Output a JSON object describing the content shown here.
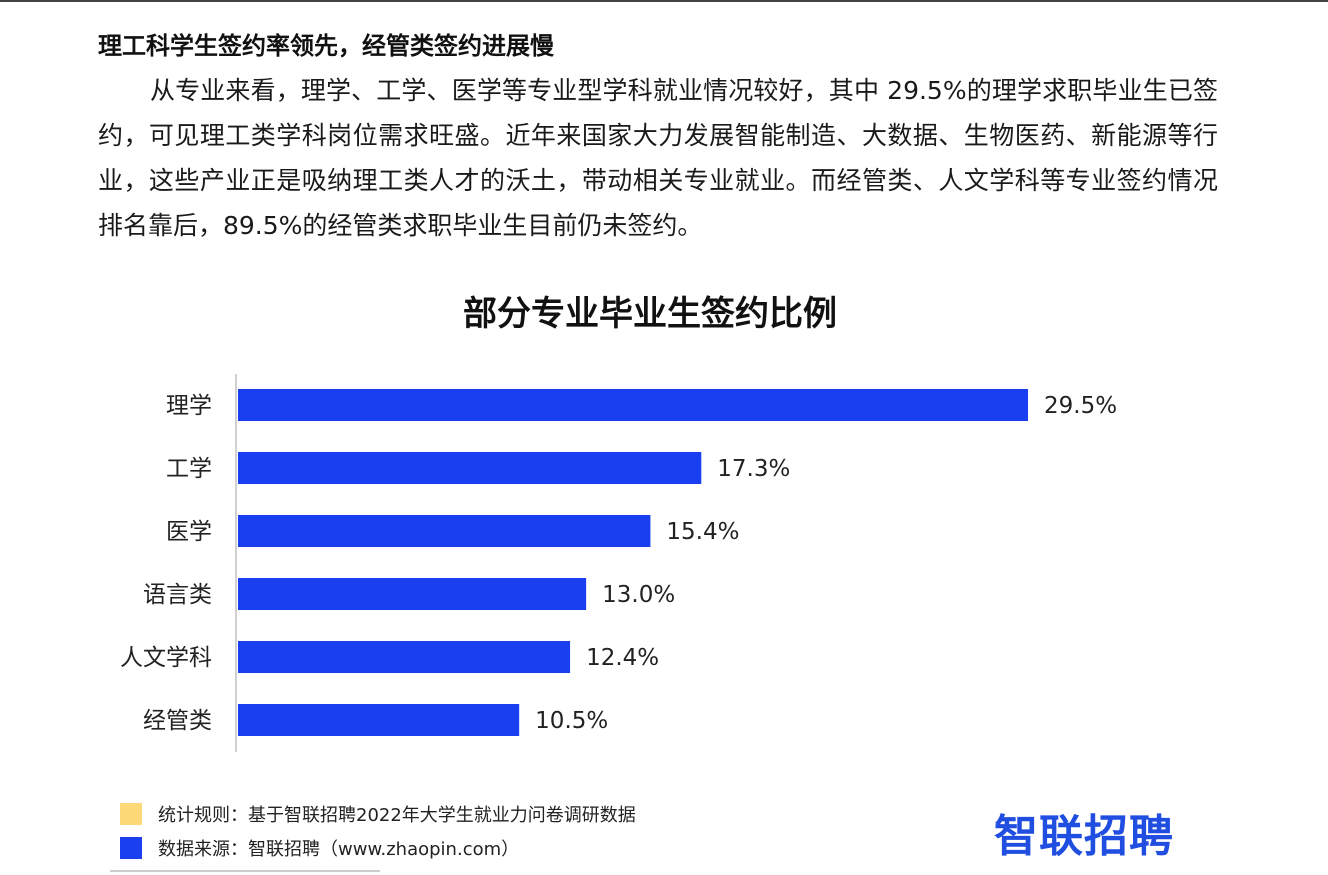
{
  "article": {
    "heading": "理工科学生签约率领先，经管类签约进展慢",
    "paragraph": "从专业来看，理学、工学、医学等专业型学科就业情况较好，其中 29.5%的理学求职毕业生已签约，可见理工类学科岗位需求旺盛。近年来国家大力发展智能制造、大数据、生物医药、新能源等行业，这些产业正是吸纳理工类人才的沃土，带动相关专业就业。而经管类、人文学科等专业签约情况排名靠后，89.5%的经管类求职毕业生目前仍未签约。"
  },
  "chart_data": {
    "type": "bar",
    "orientation": "horizontal",
    "title": "部分专业毕业生签约比例",
    "categories": [
      "理学",
      "工学",
      "医学",
      "语言类",
      "人文学科",
      "经管类"
    ],
    "values": [
      29.5,
      17.3,
      15.4,
      13.0,
      12.4,
      10.5
    ],
    "value_labels": [
      "29.5%",
      "17.3%",
      "15.4%",
      "13.0%",
      "12.4%",
      "10.5%"
    ],
    "unit": "%",
    "xlim": [
      0,
      29.5
    ],
    "bar_color": "#1a3ff0",
    "grid": false
  },
  "legend": [
    {
      "swatch_color": "#fcd877",
      "text": "统计规则：基于智联招聘2022年大学生就业力问卷调研数据"
    },
    {
      "swatch_color": "#1a3ff0",
      "text": "数据来源：智联招聘（www.zhaopin.com）"
    }
  ],
  "logo": {
    "text": "智联招聘",
    "color": "#1f4ee0"
  }
}
